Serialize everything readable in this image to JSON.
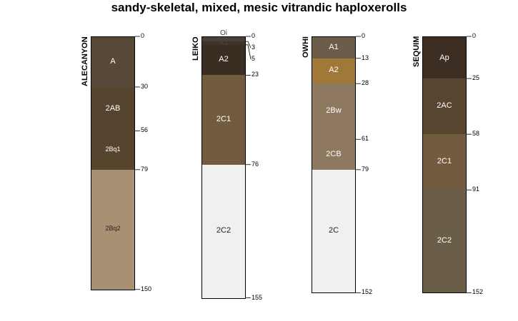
{
  "title": "sandy-skeletal, mixed, mesic vitrandic haploxerolls",
  "profiles": [
    {
      "name": "ALECANYON",
      "horizons": [
        {
          "name": "A",
          "top": 0,
          "bottom": 30,
          "color": "#574838"
        },
        {
          "name": "2AB",
          "top": 30,
          "bottom": 56,
          "color": "#56442e"
        },
        {
          "name": "2Bq1",
          "top": 56,
          "bottom": 79,
          "color": "#56442e"
        },
        {
          "name": "2Bq2",
          "top": 79,
          "bottom": 150,
          "color": "#a89072"
        }
      ]
    },
    {
      "name": "LEIKO",
      "horizons": [
        {
          "name": "Oi",
          "top": 0,
          "bottom": 3,
          "color": "#4a4038"
        },
        {
          "name": "A1",
          "top": 3,
          "bottom": 5,
          "color": "#3f3428"
        },
        {
          "name": "A2",
          "top": 5,
          "bottom": 23,
          "color": "#3a2e22"
        },
        {
          "name": "2C1",
          "top": 23,
          "bottom": 76,
          "color": "#735b40"
        },
        {
          "name": "2C2",
          "top": 76,
          "bottom": 155,
          "color": "#f0f0f0"
        }
      ]
    },
    {
      "name": "OWHI",
      "horizons": [
        {
          "name": "A1",
          "top": 0,
          "bottom": 13,
          "color": "#6e5c4b"
        },
        {
          "name": "A2",
          "top": 13,
          "bottom": 28,
          "color": "#a07838"
        },
        {
          "name": "2Bw",
          "top": 28,
          "bottom": 61,
          "color": "#8f7860"
        },
        {
          "name": "2CB",
          "top": 61,
          "bottom": 79,
          "color": "#8f7860"
        },
        {
          "name": "2C",
          "top": 79,
          "bottom": 152,
          "color": "#f0f0f0"
        }
      ]
    },
    {
      "name": "SEQUIM",
      "horizons": [
        {
          "name": "Ap",
          "top": 0,
          "bottom": 25,
          "color": "#3c2e22"
        },
        {
          "name": "2AC",
          "top": 25,
          "bottom": 58,
          "color": "#58452f"
        },
        {
          "name": "2C1",
          "top": 58,
          "bottom": 91,
          "color": "#735b40"
        },
        {
          "name": "2C2",
          "top": 91,
          "bottom": 152,
          "color": "#6b5e48"
        }
      ]
    }
  ]
}
